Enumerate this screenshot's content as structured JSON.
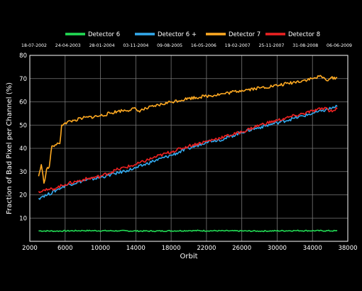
{
  "chart_data": {
    "type": "line",
    "xlabel": "Orbit",
    "ylabel": "Fraction of Bad Pixel per Channel (%)",
    "xlim": [
      2000,
      38000
    ],
    "ylim": [
      0,
      80
    ],
    "x_ticks": [
      2000,
      6000,
      10000,
      14000,
      18000,
      22000,
      26000,
      30000,
      34000,
      38000
    ],
    "y_ticks": [
      10,
      20,
      30,
      40,
      50,
      60,
      70,
      80
    ],
    "grid": true,
    "legend_position": "top-center",
    "date_labels": [
      "18-07-2002",
      "24-04-2003",
      "28-01-2004",
      "03-11-2004",
      "09-08-2005",
      "16-05-2006",
      "19-02-2007",
      "25-11-2007",
      "31-08-2008",
      "06-06-2009"
    ],
    "series": [
      {
        "name": "Detector 6",
        "color": "#22dd55",
        "x": [
          3000,
          5000,
          8000,
          12000,
          16000,
          20000,
          24000,
          28000,
          32000,
          36800
        ],
        "y": [
          4.5,
          4.4,
          4.6,
          4.5,
          4.4,
          4.6,
          4.5,
          4.4,
          4.6,
          4.5
        ]
      },
      {
        "name": "Detector 6 +",
        "color": "#33aaee",
        "x": [
          3000,
          3500,
          4000,
          5000,
          6000,
          8000,
          10000,
          12000,
          13000,
          14000,
          16000,
          18000,
          20000,
          21500,
          22000,
          24000,
          26000,
          28000,
          30000,
          32000,
          34000,
          35000,
          36800
        ],
        "y": [
          18.5,
          19.5,
          20,
          22,
          24,
          26,
          27.5,
          29.5,
          30.5,
          31.5,
          34.5,
          37,
          40,
          42,
          43,
          44,
          47,
          49,
          51,
          53,
          55,
          56,
          58
        ]
      },
      {
        "name": "Detector 7",
        "color": "#ffaa22",
        "x": [
          3000,
          3300,
          3600,
          3900,
          4200,
          4500,
          5000,
          5400,
          5600,
          6000,
          7000,
          8000,
          10000,
          12000,
          14000,
          14200,
          16000,
          18000,
          20000,
          22000,
          24000,
          26000,
          28000,
          30000,
          32000,
          34000,
          35000,
          35500,
          36000,
          36800
        ],
        "y": [
          28,
          33,
          25,
          31,
          32,
          41,
          41.5,
          42,
          50,
          51,
          52,
          53,
          54,
          56,
          57,
          56,
          58,
          60,
          61.5,
          62.5,
          63.5,
          65,
          66,
          67,
          68.5,
          70,
          71,
          69.5,
          70,
          70.5
        ]
      },
      {
        "name": "Detector 8",
        "color": "#ee2222",
        "x": [
          3000,
          3500,
          4000,
          5000,
          6000,
          8000,
          10000,
          12000,
          14000,
          16000,
          18000,
          20000,
          22000,
          24000,
          26000,
          28000,
          30000,
          32000,
          34000,
          35500,
          36000,
          36800
        ],
        "y": [
          21.5,
          22,
          22,
          23,
          24.5,
          26.5,
          28,
          31,
          33,
          36,
          38.5,
          41,
          43,
          45,
          47,
          50,
          52,
          54,
          56,
          57.5,
          56,
          57
        ]
      }
    ]
  }
}
